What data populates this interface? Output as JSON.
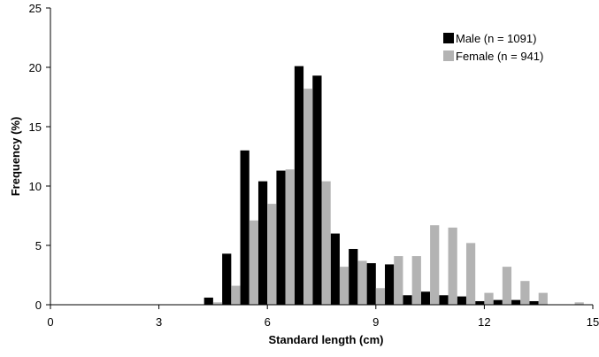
{
  "chart_data": {
    "type": "bar",
    "xlabel": "Standard length (cm)",
    "ylabel": "Frequency (%)",
    "xlim": [
      0,
      15
    ],
    "ylim": [
      0,
      25
    ],
    "xticks": [
      0,
      3,
      6,
      9,
      12,
      15
    ],
    "yticks": [
      0,
      5,
      10,
      15,
      20,
      25
    ],
    "bin_width": 0.5,
    "grid": false,
    "legend_position": "top-right",
    "series": [
      {
        "name": "Male (n = 1091)",
        "color": "#000000",
        "x": [
          4.5,
          5.0,
          5.5,
          6.0,
          6.5,
          7.0,
          7.5,
          8.0,
          8.5,
          9.0,
          9.5,
          10.0,
          10.5,
          11.0,
          11.5,
          12.0,
          12.5,
          13.0,
          13.5
        ],
        "values": [
          0.6,
          4.3,
          13.0,
          10.4,
          11.3,
          20.1,
          19.3,
          6.0,
          4.7,
          3.5,
          3.4,
          0.8,
          1.1,
          0.8,
          0.7,
          0.3,
          0.4,
          0.4,
          0.3
        ]
      },
      {
        "name": "Female (n = 941)",
        "color": "#b3b3b3",
        "x": [
          4.5,
          5.0,
          5.5,
          6.0,
          6.5,
          7.0,
          7.5,
          8.0,
          8.5,
          9.0,
          9.5,
          10.0,
          10.5,
          11.0,
          11.5,
          12.0,
          12.5,
          13.0,
          13.5,
          14.5
        ],
        "values": [
          0.2,
          1.6,
          7.1,
          8.5,
          11.4,
          18.2,
          10.4,
          3.2,
          3.7,
          1.4,
          4.1,
          4.1,
          6.7,
          6.5,
          5.2,
          1.0,
          3.2,
          2.0,
          1.0,
          0.2
        ]
      }
    ]
  }
}
